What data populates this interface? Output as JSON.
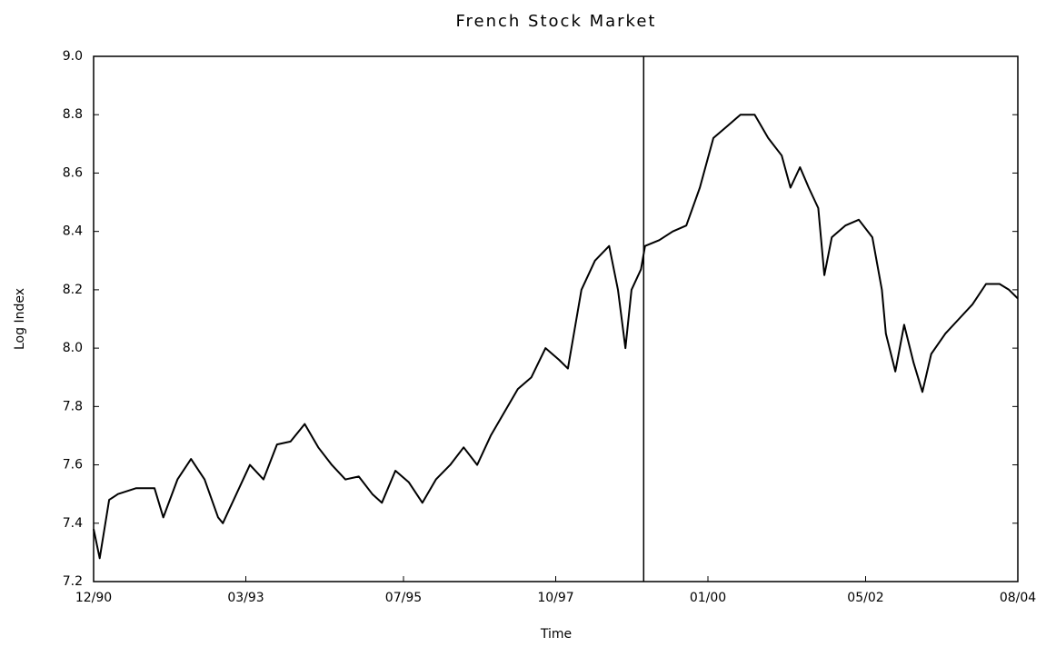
{
  "chart_data": {
    "type": "line",
    "title": "French Stock Market",
    "xlabel": "Time",
    "ylabel": "Log Index",
    "color": "#000000",
    "x": [
      1990.92,
      1991.01,
      1991.15,
      1991.28,
      1991.55,
      1991.82,
      1991.95,
      1992.16,
      1992.36,
      1992.56,
      1992.76,
      1992.83,
      1993.03,
      1993.23,
      1993.43,
      1993.63,
      1993.83,
      1994.04,
      1994.24,
      1994.44,
      1994.64,
      1994.84,
      1995.04,
      1995.18,
      1995.38,
      1995.58,
      1995.78,
      1995.98,
      1996.19,
      1996.39,
      1996.59,
      1996.79,
      1996.99,
      1997.19,
      1997.39,
      1997.6,
      1997.8,
      1997.93,
      1998.13,
      1998.33,
      1998.54,
      1998.67,
      1998.78,
      1998.87,
      1999.01,
      1999.07,
      1999.28,
      1999.48,
      1999.68,
      1999.88,
      2000.08,
      2000.28,
      2000.48,
      2000.69,
      2000.89,
      2001.09,
      2001.22,
      2001.36,
      2001.49,
      2001.63,
      2001.72,
      2001.83,
      2002.03,
      2002.23,
      2002.43,
      2002.57,
      2002.63,
      2002.77,
      2002.9,
      2003.04,
      2003.17,
      2003.3,
      2003.51,
      2003.71,
      2003.91,
      2004.11,
      2004.31,
      2004.45,
      2004.58
    ],
    "values": [
      7.38,
      7.28,
      7.48,
      7.5,
      7.52,
      7.52,
      7.42,
      7.55,
      7.62,
      7.55,
      7.42,
      7.4,
      7.5,
      7.6,
      7.55,
      7.67,
      7.68,
      7.74,
      7.66,
      7.6,
      7.55,
      7.56,
      7.5,
      7.47,
      7.58,
      7.54,
      7.47,
      7.55,
      7.6,
      7.66,
      7.6,
      7.7,
      7.78,
      7.86,
      7.9,
      8.0,
      7.96,
      7.93,
      8.2,
      8.3,
      8.35,
      8.2,
      8.0,
      8.2,
      8.27,
      8.35,
      8.37,
      8.4,
      8.42,
      8.55,
      8.72,
      8.76,
      8.8,
      8.8,
      8.72,
      8.66,
      8.55,
      8.62,
      8.55,
      8.48,
      8.25,
      8.38,
      8.42,
      8.44,
      8.38,
      8.2,
      8.05,
      7.92,
      8.08,
      7.95,
      7.85,
      7.98,
      8.05,
      8.1,
      8.15,
      8.22,
      8.22,
      8.2,
      8.17
    ],
    "vline": 1999.05,
    "xlim": [
      1990.92,
      2004.58
    ],
    "xticks": [
      {
        "value": 1990.92,
        "label": "12/90"
      },
      {
        "value": 1993.17,
        "label": "03/93"
      },
      {
        "value": 1995.5,
        "label": "07/95"
      },
      {
        "value": 1997.75,
        "label": "10/97"
      },
      {
        "value": 2000.0,
        "label": "01/00"
      },
      {
        "value": 2002.33,
        "label": "05/02"
      },
      {
        "value": 2004.58,
        "label": "08/04"
      }
    ],
    "ylim": [
      7.2,
      9.0
    ],
    "yticks": [
      7.2,
      7.4,
      7.6,
      7.8,
      {
        "value": 8.0,
        "label": "8.0"
      },
      8.2,
      8.4,
      8.6,
      8.8,
      {
        "value": 9.0,
        "label": "9.0"
      }
    ]
  }
}
